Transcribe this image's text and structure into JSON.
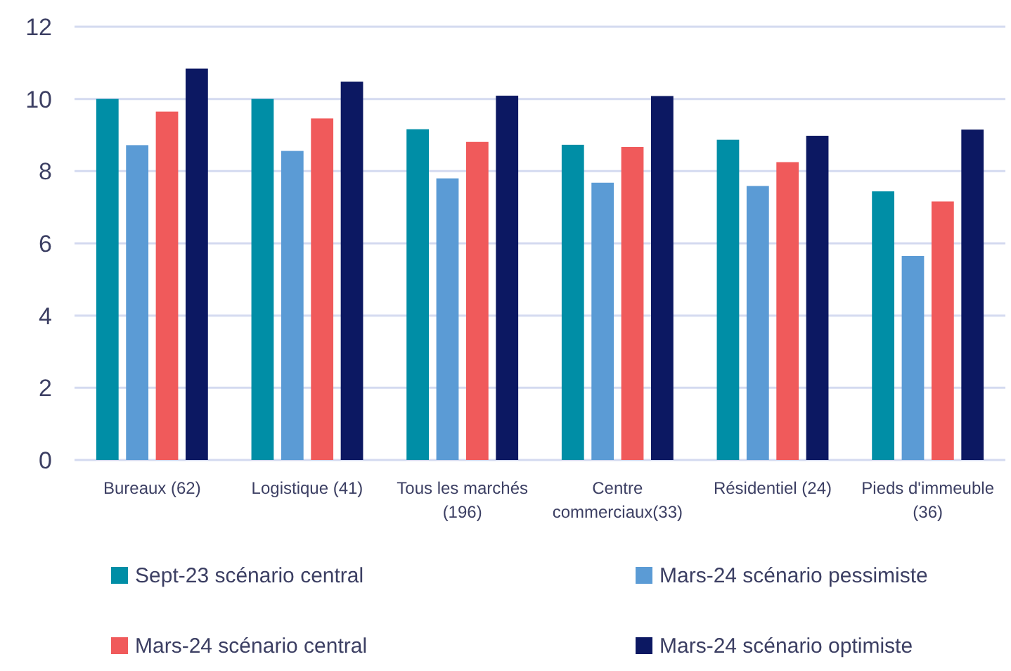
{
  "chart_data": {
    "type": "bar",
    "categories": [
      "Bureaux (62)",
      "Logistique (41)",
      "Tous les marchés (196)",
      "Centre commerciaux(33)",
      "Résidentiel (24)",
      "Pieds d'immeuble (36)"
    ],
    "series": [
      {
        "name": "Sept-23 scénario central",
        "color": "#008ea6",
        "values": [
          10.0,
          10.0,
          9.16,
          8.73,
          8.87,
          7.44
        ]
      },
      {
        "name": "Mars-24 scénario pessimiste",
        "color": "#5b9bd5",
        "values": [
          8.72,
          8.56,
          7.8,
          7.68,
          7.59,
          5.65
        ]
      },
      {
        "name": "Mars-24 scénario central",
        "color": "#f05a5b",
        "values": [
          9.65,
          9.46,
          8.81,
          8.67,
          8.25,
          7.16
        ]
      },
      {
        "name": "Mars-24 scénario optimiste",
        "color": "#0c1862",
        "values": [
          10.84,
          10.48,
          10.09,
          10.08,
          8.98,
          9.15
        ]
      }
    ],
    "ylim": [
      0,
      12
    ],
    "yticks": [
      0,
      2,
      4,
      6,
      8,
      10,
      12
    ],
    "grid": "y",
    "legend": "bottom"
  }
}
